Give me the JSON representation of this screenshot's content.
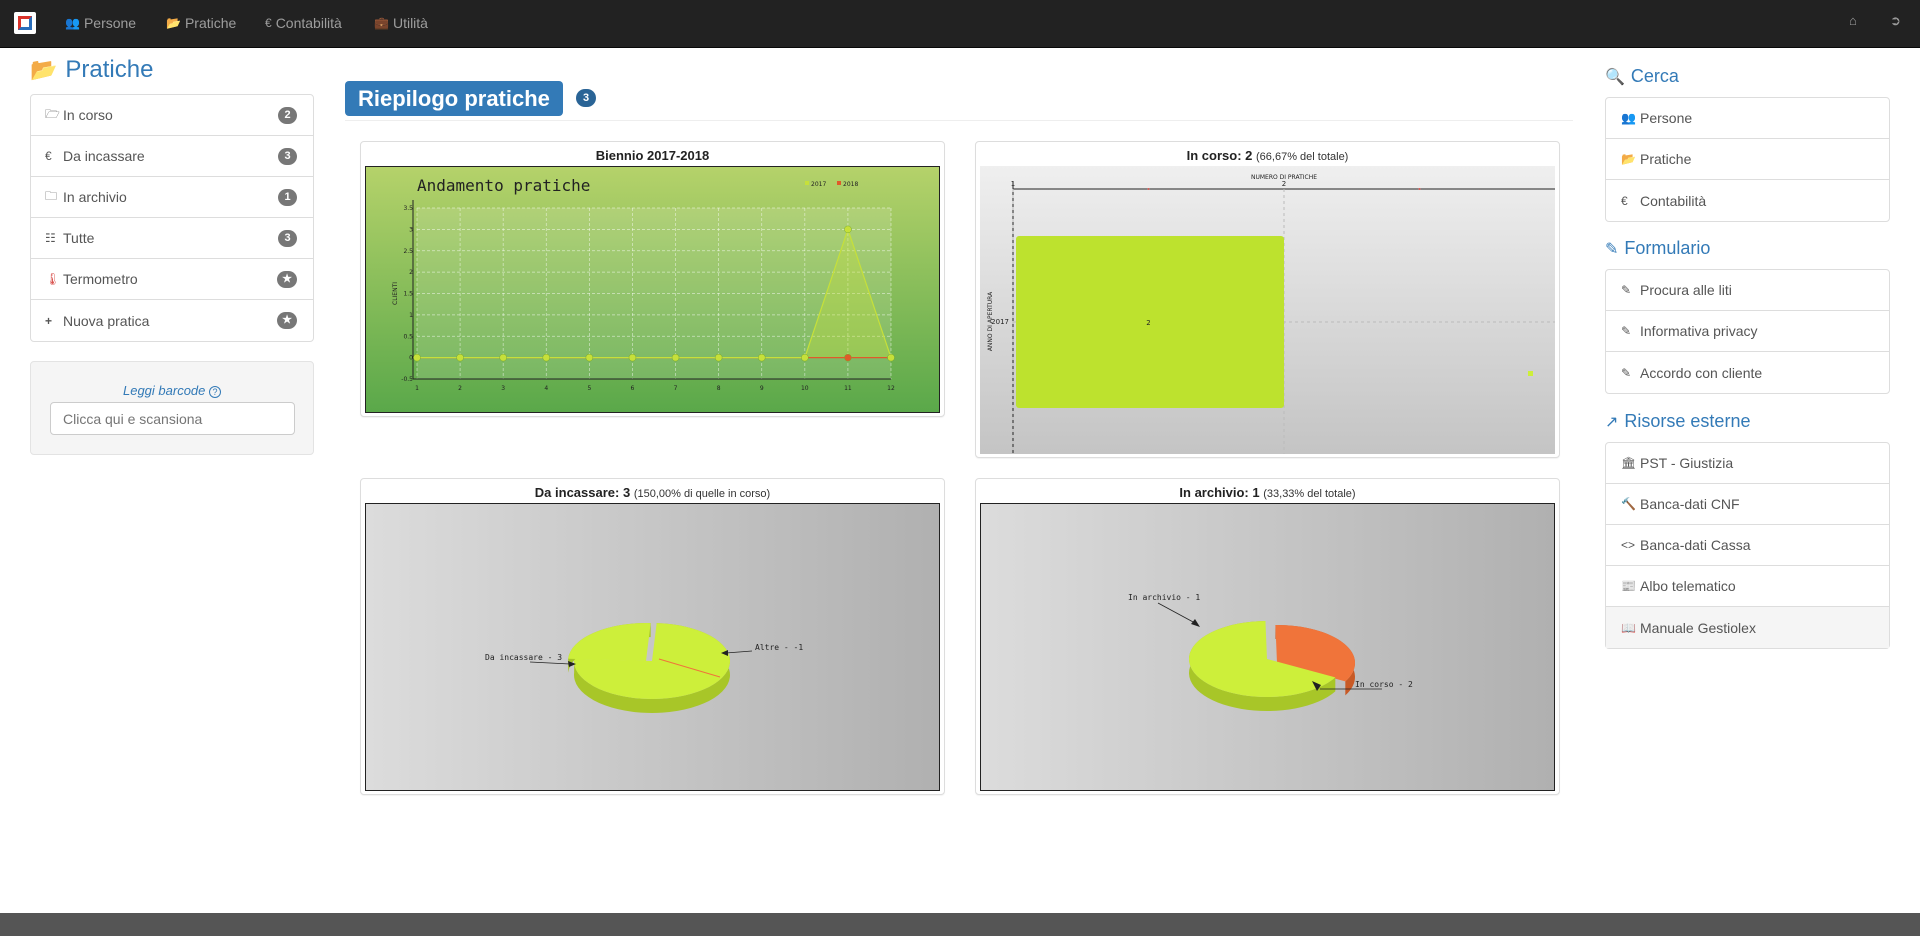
{
  "navbar": {
    "items": [
      {
        "icon": "users-icon",
        "label": "Persone"
      },
      {
        "icon": "folder-open-icon",
        "label": "Pratiche"
      },
      {
        "icon": "euro-icon",
        "label": "Contabilità"
      },
      {
        "icon": "briefcase-icon",
        "label": "Utilità"
      }
    ]
  },
  "sidebar": {
    "title": "Pratiche",
    "items": [
      {
        "icon": "folder-open-outline-icon",
        "label": "In corso",
        "badge": "2"
      },
      {
        "icon": "euro-icon",
        "label": "Da incassare",
        "badge": "3"
      },
      {
        "icon": "folder-outline-icon",
        "label": "In archivio",
        "badge": "1"
      },
      {
        "icon": "server-icon",
        "label": "Tutte",
        "badge": "3"
      },
      {
        "icon": "thermometer-icon",
        "label": "Termometro",
        "badge": "★"
      },
      {
        "icon": "plus-icon",
        "label": "Nuova pratica",
        "badge": "★"
      }
    ],
    "barcode": {
      "label": "Leggi barcode",
      "placeholder": "Clicca qui e scansiona"
    }
  },
  "main": {
    "title": "Riepilogo pratiche",
    "count": "3",
    "panels": {
      "biennio": {
        "title": "Biennio 2017-2018"
      },
      "in_corso": {
        "title_bold": "In corso: 2",
        "title_small": "(66,67% del totale)"
      },
      "da_incassare": {
        "title_bold": "Da incassare: 3",
        "title_small": "(150,00% di quelle in corso)"
      },
      "in_archivio": {
        "title_bold": "In archivio: 1",
        "title_small": "(33,33% del totale)"
      }
    }
  },
  "chart_data": [
    {
      "type": "line",
      "title": "Andamento pratiche",
      "x": [
        1,
        2,
        3,
        4,
        5,
        6,
        7,
        8,
        9,
        10,
        11,
        12
      ],
      "series": [
        {
          "name": "2017",
          "color": "#c6e03a",
          "values": [
            0,
            0,
            0,
            0,
            0,
            0,
            0,
            0,
            0,
            0,
            3,
            0
          ]
        },
        {
          "name": "2018",
          "color": "#e05a2a",
          "values": [
            0,
            0,
            0,
            0,
            0,
            0,
            0,
            0,
            0,
            0,
            0,
            0
          ]
        }
      ],
      "ylabel": "CLIENTI",
      "ylim": [
        -0.5,
        3.5
      ],
      "yticks": [
        -0.5,
        0,
        0.5,
        1,
        1.5,
        2,
        2.5,
        3,
        3.5
      ],
      "legend": "top-right",
      "grid": true
    },
    {
      "type": "bar",
      "orientation": "horizontal",
      "xlabel": "NUMERO DI PRATICHE",
      "ylabel": "ANNO DI APERTURA",
      "categories": [
        "2017"
      ],
      "values": [
        2
      ],
      "xticks": [
        1,
        2
      ],
      "xlim": [
        1,
        3
      ]
    },
    {
      "type": "pie",
      "labels": [
        "Da incassare - 3",
        "Altre - -1"
      ],
      "values": [
        3,
        -1
      ],
      "colors": [
        "#cdef3a",
        "#cdef3a"
      ]
    },
    {
      "type": "pie",
      "labels": [
        "In archivio - 1",
        "In corso - 2"
      ],
      "values": [
        1,
        2
      ],
      "colors": [
        "#f0743a",
        "#cdef3a"
      ]
    }
  ],
  "right": {
    "search": {
      "title": "Cerca",
      "items": [
        {
          "icon": "users-icon",
          "label": "Persone"
        },
        {
          "icon": "folder-open-icon",
          "label": "Pratiche"
        },
        {
          "icon": "euro-icon",
          "label": "Contabilità"
        }
      ]
    },
    "forms": {
      "title": "Formulario",
      "items": [
        {
          "icon": "magic-wand-icon",
          "label": "Procura alle liti"
        },
        {
          "icon": "magic-wand-icon",
          "label": "Informativa privacy"
        },
        {
          "icon": "magic-wand-icon",
          "label": "Accordo con cliente"
        }
      ]
    },
    "external": {
      "title": "Risorse esterne",
      "items": [
        {
          "icon": "bank-icon",
          "label": "PST - Giustizia"
        },
        {
          "icon": "gavel-icon",
          "label": "Banca-dati CNF"
        },
        {
          "icon": "code-icon",
          "label": "Banca-dati Cassa"
        },
        {
          "icon": "newspaper-icon",
          "label": "Albo telematico"
        },
        {
          "icon": "book-icon",
          "label": "Manuale Gestiolex"
        }
      ]
    }
  }
}
